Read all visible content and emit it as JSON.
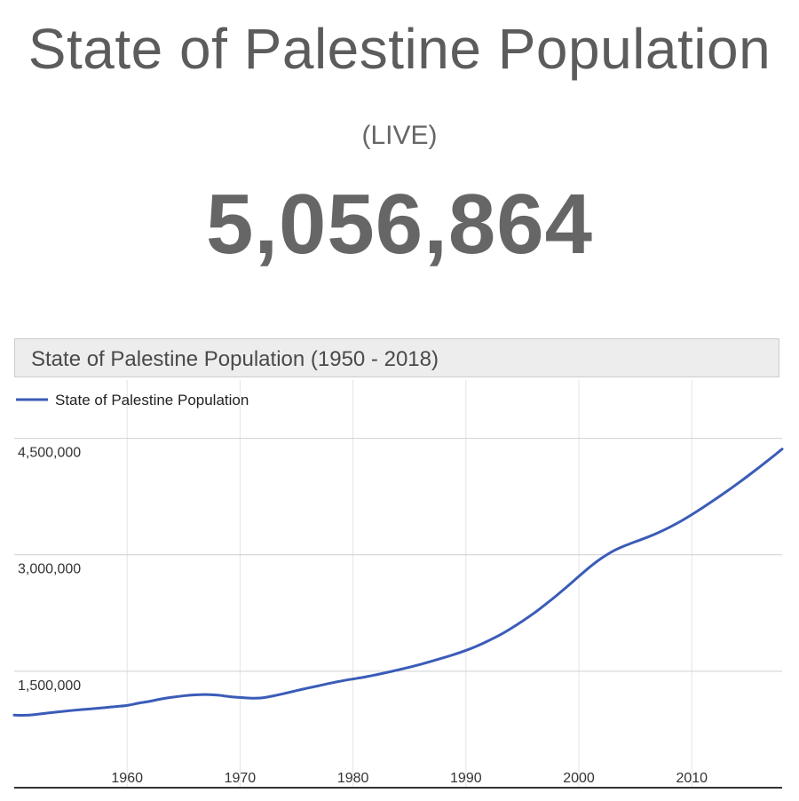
{
  "header": {
    "title": "State of Palestine Population",
    "live_label": "(LIVE)",
    "live_count": "5,056,864"
  },
  "chart_data": {
    "type": "line",
    "title": "State of Palestine Population (1950 - 2018)",
    "legend": [
      "State of Palestine Population"
    ],
    "legend_position": "top-left",
    "xlabel": "",
    "ylabel": "",
    "xlim": [
      1950,
      2018
    ],
    "ylim": [
      0,
      5250000
    ],
    "x_ticks": [
      1960,
      1970,
      1980,
      1990,
      2000,
      2010
    ],
    "x_tick_labels": [
      "1960",
      "1970",
      "1980",
      "1990",
      "2000",
      "2010"
    ],
    "y_ticks": [
      1500000,
      3000000,
      4500000
    ],
    "y_tick_labels": [
      "1,500,000",
      "3,000,000",
      "4,500,000"
    ],
    "grid": true,
    "series_color": "#3a5cb8",
    "series": [
      {
        "name": "State of Palestine Population",
        "x": [
          1950,
          1951,
          1952,
          1953,
          1954,
          1955,
          1956,
          1957,
          1958,
          1959,
          1960,
          1961,
          1962,
          1963,
          1964,
          1965,
          1966,
          1967,
          1968,
          1969,
          1970,
          1971,
          1972,
          1973,
          1974,
          1975,
          1976,
          1977,
          1978,
          1979,
          1980,
          1981,
          1982,
          1983,
          1984,
          1985,
          1986,
          1987,
          1988,
          1989,
          1990,
          1991,
          1992,
          1993,
          1994,
          1995,
          1996,
          1997,
          1998,
          1999,
          2000,
          2001,
          2002,
          2003,
          2004,
          2005,
          2006,
          2007,
          2008,
          2009,
          2010,
          2011,
          2012,
          2013,
          2014,
          2015,
          2016,
          2017,
          2018
        ],
        "values": [
          935000,
          933000,
          945000,
          962000,
          978000,
          993000,
          1006000,
          1018000,
          1031000,
          1045000,
          1060000,
          1088000,
          1112000,
          1142000,
          1165000,
          1183000,
          1195000,
          1199000,
          1192000,
          1174000,
          1162000,
          1153000,
          1158000,
          1184000,
          1216000,
          1250000,
          1283000,
          1314000,
          1346000,
          1375000,
          1400000,
          1424000,
          1453000,
          1484000,
          1517000,
          1552000,
          1589000,
          1630000,
          1673000,
          1718000,
          1768000,
          1826000,
          1893000,
          1966000,
          2052000,
          2145000,
          2245000,
          2356000,
          2472000,
          2595000,
          2722000,
          2846000,
          2955000,
          3045000,
          3112000,
          3168000,
          3222000,
          3283000,
          3352000,
          3430000,
          3517000,
          3610000,
          3707000,
          3807000,
          3911000,
          4019000,
          4130000,
          4244000,
          4361000
        ]
      }
    ]
  }
}
